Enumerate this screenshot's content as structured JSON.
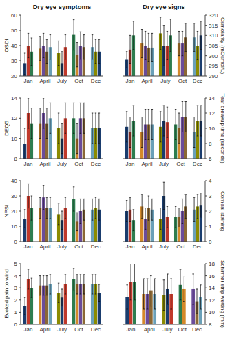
{
  "chart_data": [
    {
      "type": "bar",
      "title": "Dry eye symptoms",
      "ylabel": "OSDI",
      "categories": [
        "Jan",
        "April",
        "July",
        "Oct",
        "Dec"
      ],
      "ylim": [
        20,
        60
      ],
      "yticks": [
        20,
        30,
        40,
        50,
        60
      ],
      "groups": [
        {
          "values": [
            28,
            40,
            36
          ],
          "errors": [
            7,
            8,
            9
          ],
          "colors": [
            "#1a3d6e",
            "#c0392b",
            "#2e7d4f"
          ]
        },
        {
          "values": [
            38,
            40,
            36,
            39
          ],
          "errors": [
            8,
            8,
            8,
            8
          ],
          "colors": [
            "#d4892a",
            "#6b4c9a",
            "#8b6835",
            "#6aa0b8"
          ]
        },
        {
          "values": [
            35,
            28,
            39
          ],
          "errors": [
            8,
            8,
            8
          ],
          "colors": [
            "#8b8b00",
            "#1a3d6e",
            "#c0392b"
          ]
        },
        {
          "values": [
            47,
            34,
            40,
            39
          ],
          "errors": [
            10,
            8,
            9,
            8
          ],
          "colors": [
            "#2e7d4f",
            "#d4892a",
            "#6b4c9a",
            "#8b6835"
          ]
        },
        {
          "values": [
            39,
            36,
            36
          ],
          "errors": [
            8,
            8,
            8
          ],
          "colors": [
            "#6aa0b8",
            "#8b8b00",
            "#1a3d6e"
          ]
        }
      ]
    },
    {
      "type": "bar",
      "ylabel": "DEQ5",
      "categories": [
        "Jan",
        "April",
        "July",
        "Oct",
        "Dec"
      ],
      "ylim": [
        8,
        14
      ],
      "yticks": [
        8,
        10,
        12,
        14
      ],
      "groups": [
        {
          "values": [
            9.5,
            12.5,
            11.5
          ],
          "errors": [
            1.5,
            1.5,
            1.5
          ],
          "colors": [
            "#1a3d6e",
            "#c0392b",
            "#2e7d4f"
          ]
        },
        {
          "values": [
            11.5,
            12.5,
            11.5,
            12.0
          ],
          "errors": [
            1.5,
            1.5,
            1.5,
            1.5
          ],
          "colors": [
            "#d4892a",
            "#6b4c9a",
            "#8b6835",
            "#6aa0b8"
          ]
        },
        {
          "values": [
            11.0,
            10.0,
            12.0
          ],
          "errors": [
            1.5,
            1.5,
            1.5
          ],
          "colors": [
            "#8b8b00",
            "#1a3d6e",
            "#c0392b"
          ]
        },
        {
          "values": [
            12.0,
            10.0,
            12.0,
            12.0
          ],
          "errors": [
            1.5,
            1.5,
            1.5,
            1.5
          ],
          "colors": [
            "#2e7d4f",
            "#d4892a",
            "#6b4c9a",
            "#8b6835"
          ]
        },
        {
          "values": [
            11.0,
            11.0,
            11.0
          ],
          "errors": [
            1.5,
            1.5,
            1.5
          ],
          "colors": [
            "#6aa0b8",
            "#8b8b00",
            "#1a3d6e"
          ]
        }
      ]
    },
    {
      "type": "bar",
      "ylabel": "NPSI",
      "categories": [
        "Jan",
        "April",
        "July",
        "Oct",
        "Dec"
      ],
      "ylim": [
        0,
        40
      ],
      "yticks": [
        0,
        10,
        20,
        30,
        40
      ],
      "groups": [
        {
          "values": [
            15,
            30,
            22
          ],
          "errors": [
            6,
            8,
            8
          ],
          "colors": [
            "#1a3d6e",
            "#c0392b",
            "#2e7d4f"
          ]
        },
        {
          "values": [
            22,
            29,
            22,
            22
          ],
          "errors": [
            7,
            8,
            7,
            7
          ],
          "colors": [
            "#d4892a",
            "#6b4c9a",
            "#8b6835",
            "#6aa0b8"
          ]
        },
        {
          "values": [
            18,
            14,
            22
          ],
          "errors": [
            7,
            6,
            7
          ],
          "colors": [
            "#8b8b00",
            "#1a3d6e",
            "#c0392b"
          ]
        },
        {
          "values": [
            28,
            13,
            20,
            21
          ],
          "errors": [
            8,
            6,
            8,
            7
          ],
          "colors": [
            "#2e7d4f",
            "#d4892a",
            "#6b4c9a",
            "#8b6835"
          ]
        },
        {
          "values": [
            21,
            22,
            21
          ],
          "errors": [
            7,
            7,
            7
          ],
          "colors": [
            "#6aa0b8",
            "#8b8b00",
            "#1a3d6e"
          ]
        }
      ]
    },
    {
      "type": "bar",
      "ylabel": "Evoked pain to wind",
      "categories": [
        "Jan",
        "April",
        "July",
        "Oct",
        "Dec"
      ],
      "ylim": [
        0,
        5
      ],
      "yticks": [
        0,
        1,
        2,
        3,
        4,
        5
      ],
      "groups": [
        {
          "values": [
            1.5,
            3.7,
            3.0
          ],
          "errors": [
            0.7,
            0.8,
            0.8
          ],
          "colors": [
            "#1a3d6e",
            "#c0392b",
            "#2e7d4f"
          ]
        },
        {
          "values": [
            3.2,
            3.2,
            3.2,
            3.3
          ],
          "errors": [
            0.8,
            0.8,
            0.8,
            0.8
          ],
          "colors": [
            "#d4892a",
            "#6b4c9a",
            "#8b6835",
            "#6aa0b8"
          ]
        },
        {
          "values": [
            2.6,
            2.2,
            3.3
          ],
          "errors": [
            0.8,
            0.7,
            0.8
          ],
          "colors": [
            "#8b8b00",
            "#1a3d6e",
            "#c0392b"
          ]
        },
        {
          "values": [
            3.7,
            3.3,
            3.3,
            3.3
          ],
          "errors": [
            0.9,
            0.8,
            0.8,
            0.8
          ],
          "colors": [
            "#2e7d4f",
            "#d4892a",
            "#6b4c9a",
            "#8b6835"
          ]
        },
        {
          "values": [
            3.3,
            3.3,
            2.6
          ],
          "errors": [
            0.8,
            0.8,
            0.7
          ],
          "colors": [
            "#6aa0b8",
            "#8b8b00",
            "#1a3d6e"
          ]
        }
      ]
    },
    {
      "type": "bar",
      "title": "Dry eye signs",
      "ylabel": "Osmolarity (mOsmol/L)",
      "categories": [
        "Jan",
        "April",
        "July",
        "Oct",
        "Dec"
      ],
      "ylim": [
        290,
        320
      ],
      "yticks": [
        290,
        295,
        300,
        305,
        310,
        315,
        320
      ],
      "groups": [
        {
          "values": [
            298,
            303,
            310
          ],
          "errors": [
            4,
            7,
            7
          ],
          "colors": [
            "#1a3d6e",
            "#c0392b",
            "#2e7d4f"
          ]
        },
        {
          "values": [
            306,
            305,
            304,
            304
          ],
          "errors": [
            7,
            7,
            7,
            7
          ],
          "colors": [
            "#d4892a",
            "#6b4c9a",
            "#8b6835",
            "#6aa0b8"
          ]
        },
        {
          "values": [
            311,
            305,
            305,
            310
          ],
          "errors": [
            8,
            10,
            7,
            8
          ],
          "colors": [
            "#8b8b00",
            "#1a3d6e",
            "#c0392b",
            "#2e7d4f"
          ]
        },
        {
          "values": [
            306,
            306,
            309
          ],
          "errors": [
            6,
            6,
            7
          ],
          "colors": [
            "#d4892a",
            "#6b4c9a",
            "#8b6835"
          ]
        },
        {
          "values": [
            309,
            305,
            310
          ],
          "errors": [
            7,
            7,
            7
          ],
          "colors": [
            "#6aa0b8",
            "#8b8b00",
            "#1a3d6e"
          ]
        }
      ]
    },
    {
      "type": "bar",
      "ylabel": "Tear breakup time (seconds)",
      "categories": [
        "Jan",
        "April",
        "July",
        "Oct",
        "Dec"
      ],
      "ylim": [
        6,
        14
      ],
      "yticks": [
        6,
        8,
        10,
        12,
        14
      ],
      "groups": [
        {
          "values": [
            10.2,
            9.5,
            11.0
          ],
          "errors": [
            2.0,
            2.0,
            2.0
          ],
          "colors": [
            "#1a3d6e",
            "#c0392b",
            "#2e7d4f"
          ]
        },
        {
          "values": [
            9.5,
            10.5,
            10.5,
            10.5
          ],
          "errors": [
            2.0,
            2.0,
            2.0,
            2.0
          ],
          "colors": [
            "#d4892a",
            "#6b4c9a",
            "#8b6835",
            "#6aa0b8"
          ]
        },
        {
          "values": [
            10.2,
            11.0,
            10.8
          ],
          "errors": [
            2.0,
            2.0,
            2.0
          ],
          "colors": [
            "#8b8b00",
            "#1a3d6e",
            "#c0392b"
          ]
        },
        {
          "values": [
            10.5,
            10.0,
            11.5,
            11.5
          ],
          "errors": [
            2.0,
            2.0,
            2.0,
            2.0
          ],
          "colors": [
            "#2e7d4f",
            "#d4892a",
            "#6b4c9a",
            "#8b6835"
          ]
        },
        {
          "values": [
            9.5,
            11.0,
            11.0
          ],
          "errors": [
            2.0,
            2.0,
            2.0
          ],
          "colors": [
            "#6aa0b8",
            "#8b8b00",
            "#1a3d6e"
          ]
        }
      ]
    },
    {
      "type": "bar",
      "ylabel": "Corneal staining",
      "categories": [
        "Jan",
        "April",
        "July",
        "Oct",
        "Dec"
      ],
      "ylim": [
        0,
        4
      ],
      "yticks": [
        0,
        1,
        2,
        3,
        4
      ],
      "groups": [
        {
          "values": [
            2.0,
            2.1,
            1.4
          ],
          "errors": [
            0.7,
            0.8,
            0.7
          ],
          "colors": [
            "#1a3d6e",
            "#c0392b",
            "#2e7d4f"
          ]
        },
        {
          "values": [
            2.3,
            1.5,
            2.2,
            2.1
          ],
          "errors": [
            0.8,
            0.7,
            0.8,
            0.7
          ],
          "colors": [
            "#d4892a",
            "#6b4c9a",
            "#8b6835",
            "#6aa0b8"
          ]
        },
        {
          "values": [
            1.5,
            3.0,
            1.6
          ],
          "errors": [
            0.7,
            0.9,
            0.7
          ],
          "colors": [
            "#8b8b00",
            "#1a3d6e",
            "#c0392b"
          ]
        },
        {
          "values": [
            1.6,
            1.6,
            2.0,
            2.3
          ],
          "errors": [
            0.7,
            0.6,
            0.8,
            0.8
          ],
          "colors": [
            "#2e7d4f",
            "#d4892a",
            "#6b4c9a",
            "#8b6835"
          ]
        },
        {
          "values": [
            2.1,
            2.3,
            2.4
          ],
          "errors": [
            0.8,
            0.8,
            0.8
          ],
          "colors": [
            "#6aa0b8",
            "#8b8b00",
            "#1a3d6e"
          ]
        }
      ]
    },
    {
      "type": "bar",
      "ylabel": "Schirmer strip wetting (mm)",
      "categories": [
        "Jan",
        "April",
        "July",
        "Oct",
        "Dec"
      ],
      "ylim": [
        8,
        18
      ],
      "yticks": [
        8,
        10,
        12,
        14,
        16,
        18
      ],
      "groups": [
        {
          "values": [
            12.5,
            15.0,
            15.0
          ],
          "errors": [
            2.0,
            3.0,
            3.0
          ],
          "colors": [
            "#1a3d6e",
            "#c0392b",
            "#2e7d4f"
          ]
        },
        {
          "values": [
            13.0,
            13.0,
            13.5,
            13.0
          ],
          "errors": [
            2.5,
            2.5,
            2.5,
            2.5
          ],
          "colors": [
            "#d4892a",
            "#6b4c9a",
            "#8b6835",
            "#6aa0b8"
          ]
        },
        {
          "values": [
            12.8,
            13.8,
            13.0
          ],
          "errors": [
            2.5,
            2.5,
            2.5
          ],
          "colors": [
            "#8b8b00",
            "#1a3d6e",
            "#c0392b"
          ]
        },
        {
          "values": [
            14.5,
            13.8
          ],
          "errors": [
            2.5,
            2.0
          ],
          "colors": [
            "#2e7d4f",
            "#d4892a"
          ]
        },
        {
          "values": [
            13.8,
            11.8,
            12.5
          ],
          "errors": [
            2.5,
            2.0,
            2.0
          ],
          "colors": [
            "#6b4c9a",
            "#8b6835",
            "#6aa0b8"
          ]
        }
      ]
    }
  ]
}
